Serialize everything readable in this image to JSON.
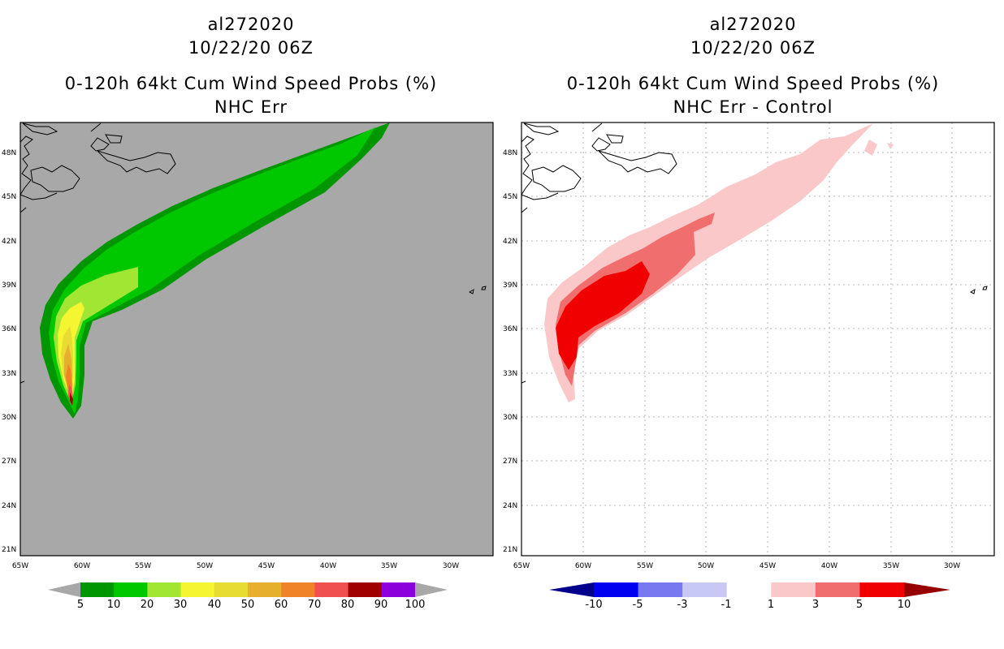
{
  "left": {
    "storm_id": "al272020",
    "datetime": "10/22/20 06Z",
    "product": "0-120h 64kt Cum Wind Speed Probs (%)",
    "subtitle": "NHC Err",
    "background_color": "#a8a8a8",
    "colorbar": {
      "labels": [
        "5",
        "10",
        "20",
        "30",
        "40",
        "50",
        "60",
        "70",
        "80",
        "90",
        "100"
      ],
      "colors": [
        "#009600",
        "#00c800",
        "#a0e632",
        "#f5f532",
        "#e6dc32",
        "#e6af2d",
        "#f08228",
        "#f05050",
        "#a00000",
        "#8c00dc"
      ]
    }
  },
  "right": {
    "storm_id": "al272020",
    "datetime": "10/22/20 06Z",
    "product": "0-120h 64kt Cum Wind Speed Probs (%)",
    "subtitle": "NHC Err - Control",
    "background_color": "#ffffff",
    "colorbar": {
      "labels": [
        "-10",
        "-5",
        "-3",
        "-1",
        "1",
        "3",
        "5",
        "10"
      ],
      "colors": [
        "#00008c",
        "#0000f0",
        "#7878f0",
        "#c8c8f5",
        "#ffffff",
        "#fac8c8",
        "#f06e6e",
        "#f00000",
        "#960000"
      ]
    }
  },
  "axes": {
    "lat_ticks": [
      "48N",
      "45N",
      "42N",
      "39N",
      "36N",
      "33N",
      "30N",
      "27N",
      "24N",
      "21N"
    ],
    "lon_ticks": [
      "65W",
      "60W",
      "55W",
      "50W",
      "45W",
      "40W",
      "35W",
      "30W"
    ]
  }
}
